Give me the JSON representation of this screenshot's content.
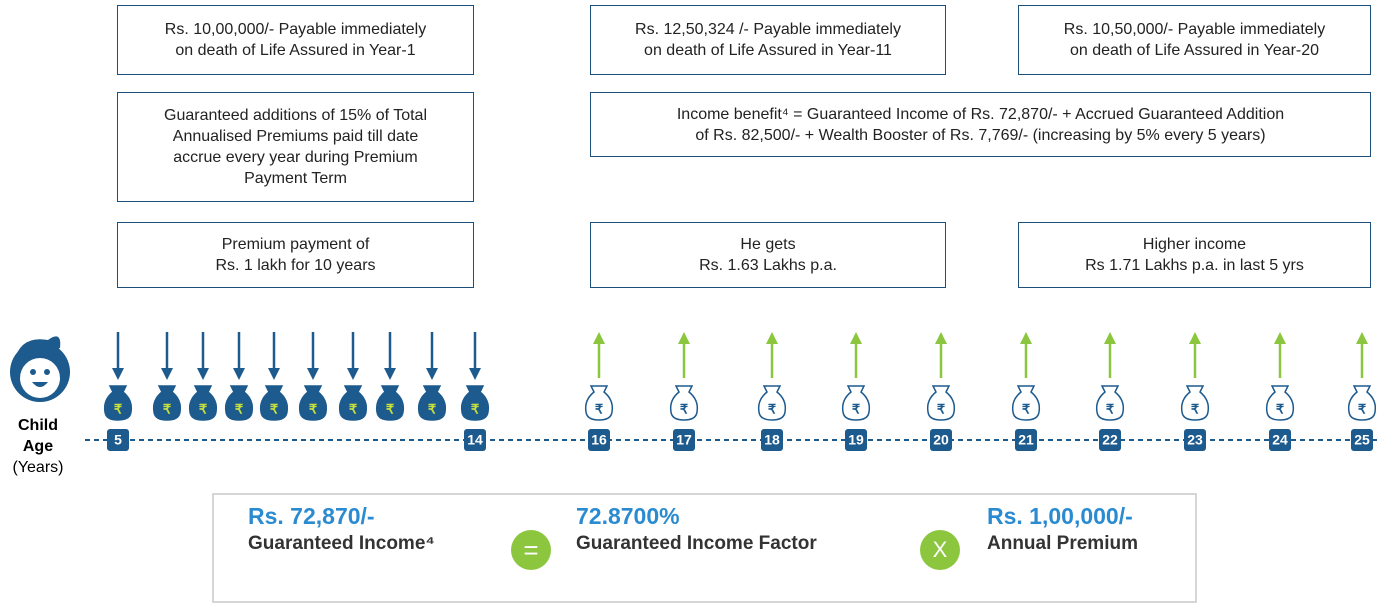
{
  "death_benefits": [
    {
      "lines": [
        "Rs. 10,00,000/- Payable immediately",
        "on death of Life Assured in Year-1"
      ]
    },
    {
      "lines": [
        "Rs. 12,50,324 /- Payable immediately",
        "on death of Life Assured in Year-11"
      ]
    },
    {
      "lines": [
        "Rs. 10,50,000/-  Payable immediately",
        "on death of Life Assured in Year-20"
      ]
    }
  ],
  "notes": [
    {
      "lines": [
        "Guaranteed additions of 15% of Total",
        "Annualised Premiums paid till date",
        "accrue every year during Premium",
        "Payment Term"
      ]
    },
    {
      "lines": [
        "Income benefit⁴ = Guaranteed Income of Rs. 72,870/- + Accrued Guaranteed Addition",
        "of Rs. 82,500/- + Wealth Booster of Rs. 7,769/- (increasing by 5% every 5 years)"
      ]
    }
  ],
  "phases": [
    {
      "lines": [
        "Premium payment of",
        "Rs. 1 lakh for 10 years"
      ]
    },
    {
      "lines": [
        "He gets",
        "Rs. 1.63 Lakhs p.a."
      ]
    },
    {
      "lines": [
        "Higher income",
        "Rs 1.71 Lakhs p.a. in last 5 yrs"
      ]
    }
  ],
  "timeline": {
    "axis_label": [
      "Child",
      "Age",
      "(Years)"
    ],
    "currency_symbol": "₹",
    "ages": [
      "5",
      "14",
      "16",
      "17",
      "18",
      "19",
      "20",
      "21",
      "22",
      "23",
      "24",
      "25"
    ]
  },
  "formula": {
    "income": {
      "amount": "Rs. 72,870/-",
      "label": "Guaranteed Income⁴"
    },
    "equals": "=",
    "factor": {
      "amount": "72.8700%",
      "label": "Guaranteed Income Factor"
    },
    "times": "X",
    "premium": {
      "amount": "Rs. 1,00,000/-",
      "label": "Annual Premium"
    }
  }
}
